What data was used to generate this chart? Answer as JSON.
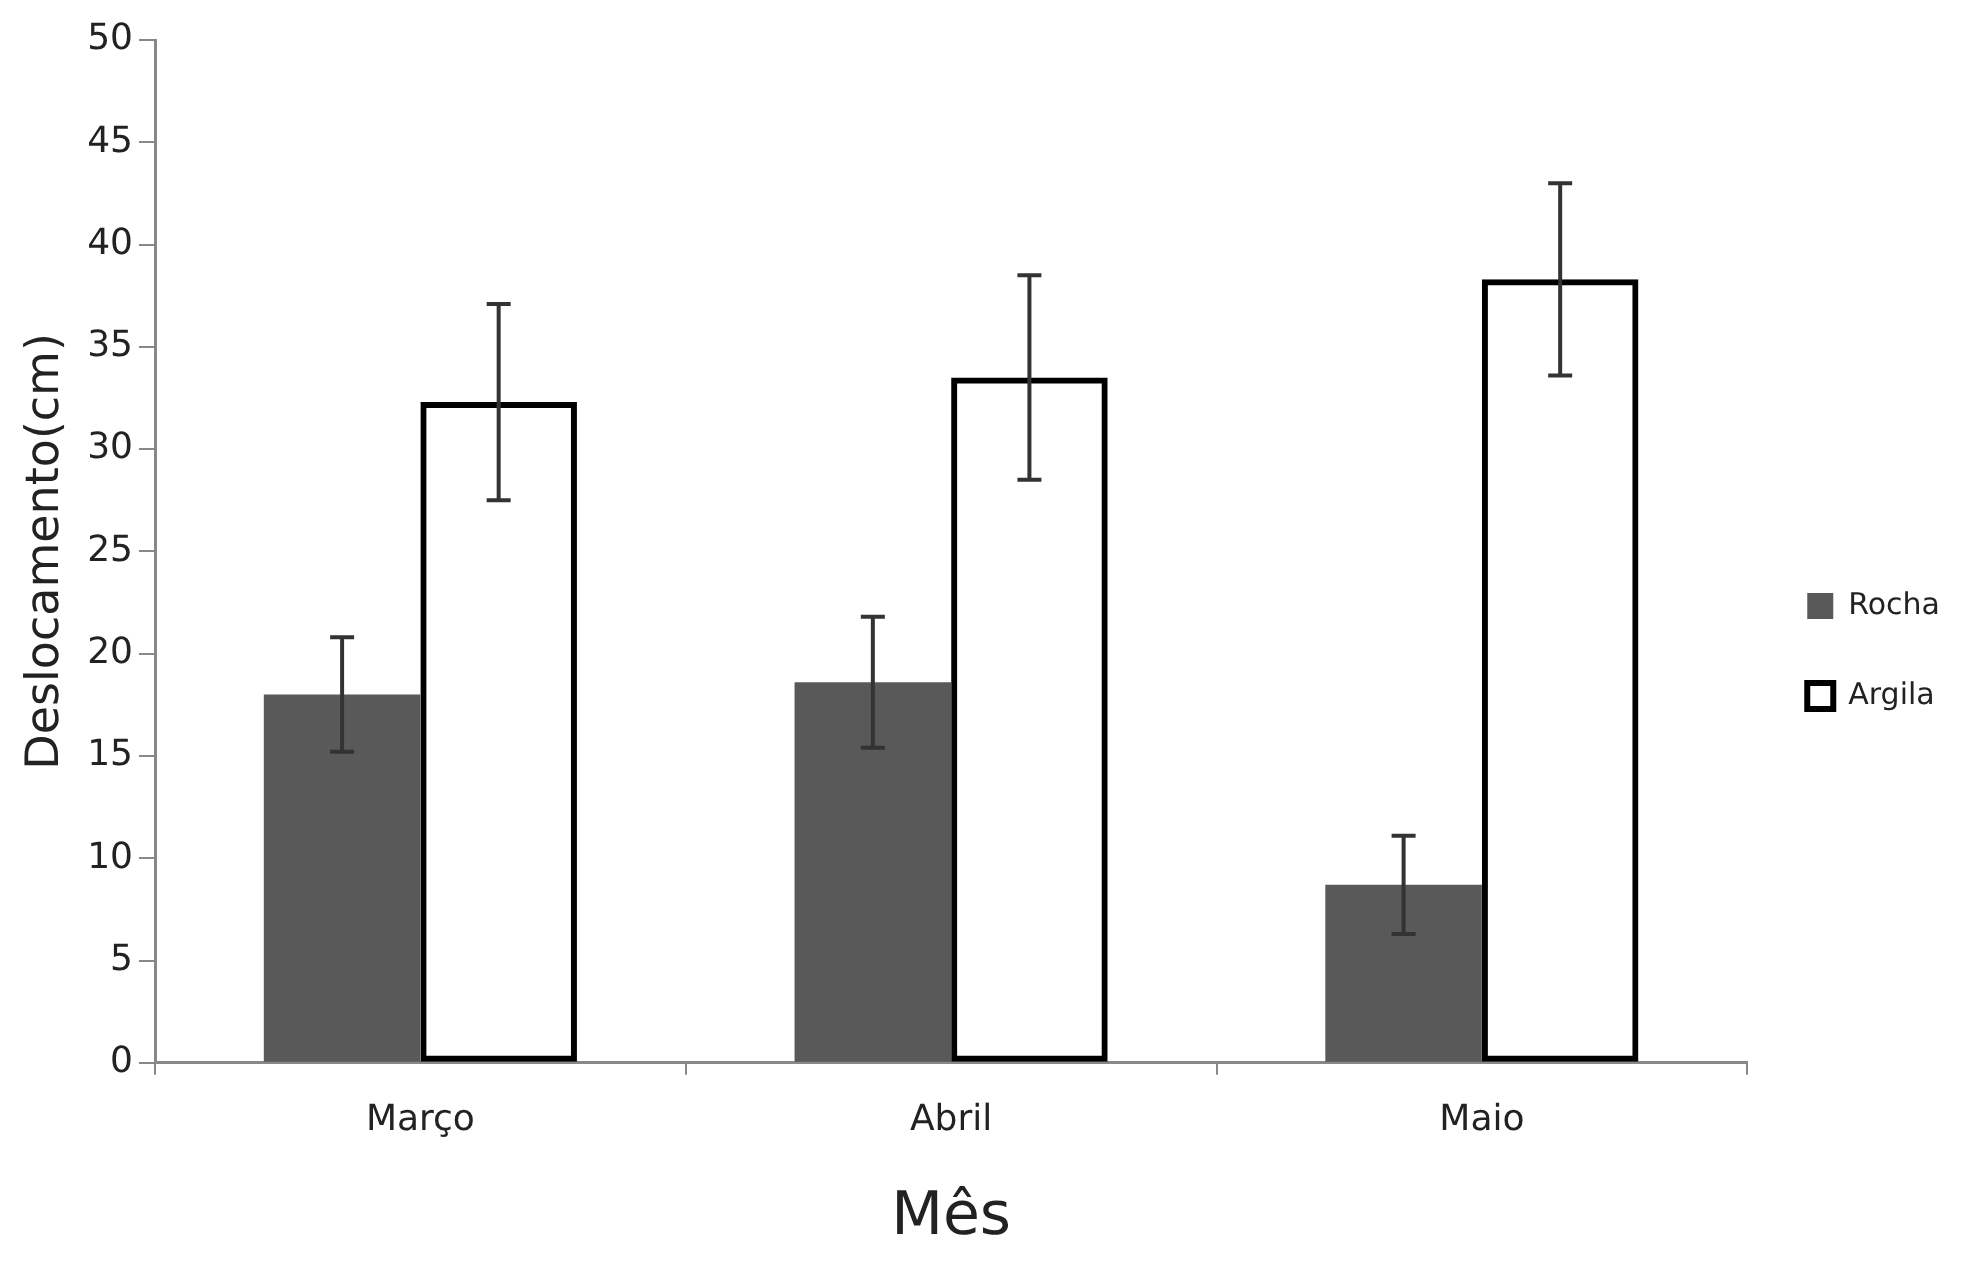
{
  "chart_data": {
    "type": "bar",
    "xlabel": "Mês",
    "ylabel": "Deslocamento(cm)",
    "categories": [
      "Março",
      "Abril",
      "Maio"
    ],
    "series": [
      {
        "name": "Rocha",
        "color": "#595959",
        "values": [
          18,
          18.6,
          8.7
        ],
        "errors": [
          2.8,
          3.2,
          2.4
        ]
      },
      {
        "name": "Argila",
        "color": "#000000",
        "values": [
          32.3,
          33.5,
          38.3
        ],
        "errors": [
          4.8,
          5.0,
          4.7
        ]
      }
    ],
    "ylim": [
      0,
      50
    ],
    "yticks": [
      0,
      5,
      10,
      15,
      20,
      25,
      30,
      35,
      40,
      45,
      50
    ],
    "grid": false,
    "legend": "right"
  }
}
